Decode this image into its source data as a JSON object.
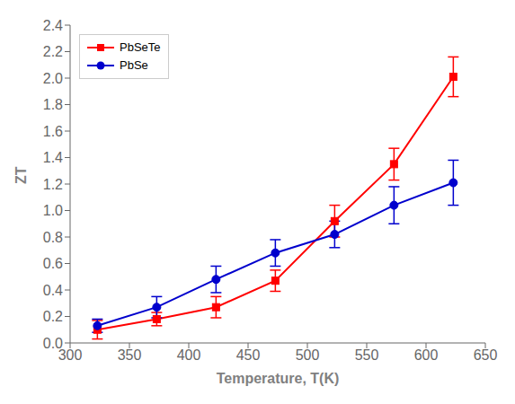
{
  "chart_data": {
    "type": "line",
    "x": [
      323,
      373,
      423,
      473,
      523,
      573,
      623
    ],
    "series": [
      {
        "name": "PbSeTe",
        "color": "#FF0000",
        "marker": "square",
        "values": [
          0.1,
          0.18,
          0.27,
          0.47,
          0.92,
          1.35,
          2.01
        ],
        "yerr": [
          0.07,
          0.05,
          0.08,
          0.08,
          0.12,
          0.12,
          0.15
        ]
      },
      {
        "name": "PbSe",
        "color": "#0000CD",
        "marker": "circle",
        "values": [
          0.13,
          0.27,
          0.48,
          0.68,
          0.82,
          1.04,
          1.21
        ],
        "yerr": [
          0.05,
          0.08,
          0.1,
          0.1,
          0.1,
          0.14,
          0.17
        ]
      }
    ],
    "xlabel": "Temperature, T(K)",
    "ylabel": "ZT",
    "xlim": [
      300,
      650
    ],
    "ylim": [
      0.0,
      2.4
    ],
    "xticks": [
      300,
      350,
      400,
      450,
      500,
      550,
      600,
      650
    ],
    "yticks": [
      {
        "value": 0,
        "label": "0.0"
      },
      0.2,
      0.4,
      0.6,
      0.8,
      {
        "value": 1,
        "label": "1.0"
      },
      1.2,
      1.4,
      1.6,
      1.8,
      {
        "value": 2,
        "label": "2.0"
      },
      2.2,
      2.4
    ],
    "grid": false,
    "legend": "upper left"
  }
}
